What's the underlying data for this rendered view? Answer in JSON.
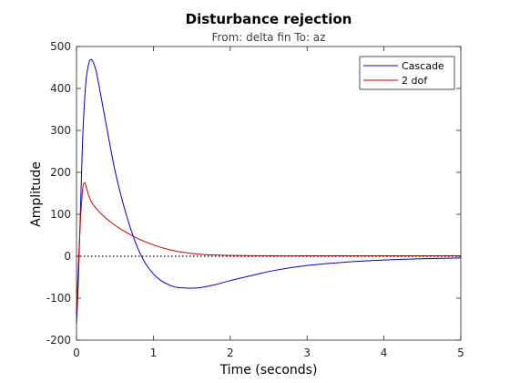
{
  "chart_data": {
    "type": "line",
    "title": "Disturbance rejection",
    "subtitle": "From: delta fin  To: az",
    "xlabel": "Time (seconds)",
    "ylabel": "Amplitude",
    "xlim": [
      0,
      5
    ],
    "ylim": [
      -200,
      500
    ],
    "xticks": [
      "0",
      "1",
      "2",
      "3",
      "4",
      "5"
    ],
    "yticks": [
      "-200",
      "-100",
      "0",
      "100",
      "200",
      "300",
      "400",
      "500"
    ],
    "grid": false,
    "legend_position": "top-right",
    "reference_line": {
      "y": 0,
      "style": "dotted",
      "color": "#000000"
    },
    "series": [
      {
        "name": "Cascade",
        "color": "#0000cc",
        "x": [
          0,
          0.02,
          0.05,
          0.08,
          0.12,
          0.16,
          0.2,
          0.25,
          0.3,
          0.4,
          0.5,
          0.6,
          0.7,
          0.8,
          0.9,
          1.0,
          1.1,
          1.2,
          1.3,
          1.45,
          1.6,
          1.8,
          2.0,
          2.3,
          2.6,
          3.0,
          3.5,
          4.0,
          4.5,
          5.0
        ],
        "y": [
          -160,
          -80,
          100,
          280,
          410,
          460,
          468,
          445,
          400,
          300,
          205,
          130,
          68,
          18,
          -18,
          -42,
          -58,
          -68,
          -74,
          -76,
          -75,
          -68,
          -58,
          -45,
          -33,
          -22,
          -14,
          -9,
          -6,
          -4
        ]
      },
      {
        "name": "2 dof",
        "color": "#cc0000",
        "x": [
          0,
          0.02,
          0.05,
          0.08,
          0.1,
          0.12,
          0.15,
          0.2,
          0.3,
          0.4,
          0.5,
          0.6,
          0.8,
          1.0,
          1.2,
          1.4,
          1.6,
          1.8,
          2.0,
          2.5,
          3.0,
          3.5,
          4.0,
          4.5,
          5.0
        ],
        "y": [
          -140,
          -40,
          80,
          160,
          175,
          170,
          150,
          128,
          105,
          88,
          74,
          62,
          42,
          27,
          16,
          9,
          5,
          3,
          2,
          1,
          1,
          1,
          1,
          1,
          1
        ]
      }
    ]
  }
}
